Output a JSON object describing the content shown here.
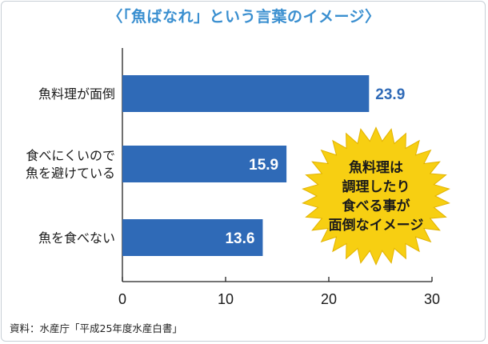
{
  "header": {
    "title": "〈「魚ばなれ」という言葉のイメージ〉"
  },
  "footer": {
    "source": "資料：水産庁「平成25年度水産白書」"
  },
  "colors": {
    "bar": "#2f6ab7",
    "title": "#3a8fd0",
    "burst": "#f7cf12",
    "burst_stroke": "#e2b300"
  },
  "callout": {
    "lines": [
      "魚料理は",
      "調理したり",
      "食べる事が",
      "面倒なイメージ"
    ]
  },
  "chart_data": {
    "type": "bar",
    "orientation": "horizontal",
    "categories": [
      [
        "魚料理が面倒"
      ],
      [
        "食べにくいので",
        "魚を避けている"
      ],
      [
        "魚を食べない"
      ]
    ],
    "values": [
      23.9,
      15.9,
      13.6
    ],
    "value_labels": [
      "23.9",
      "15.9",
      "13.6"
    ],
    "xlim": [
      0,
      30
    ],
    "xticks": [
      0,
      10,
      20,
      30
    ],
    "grid": false,
    "legend": "none"
  }
}
